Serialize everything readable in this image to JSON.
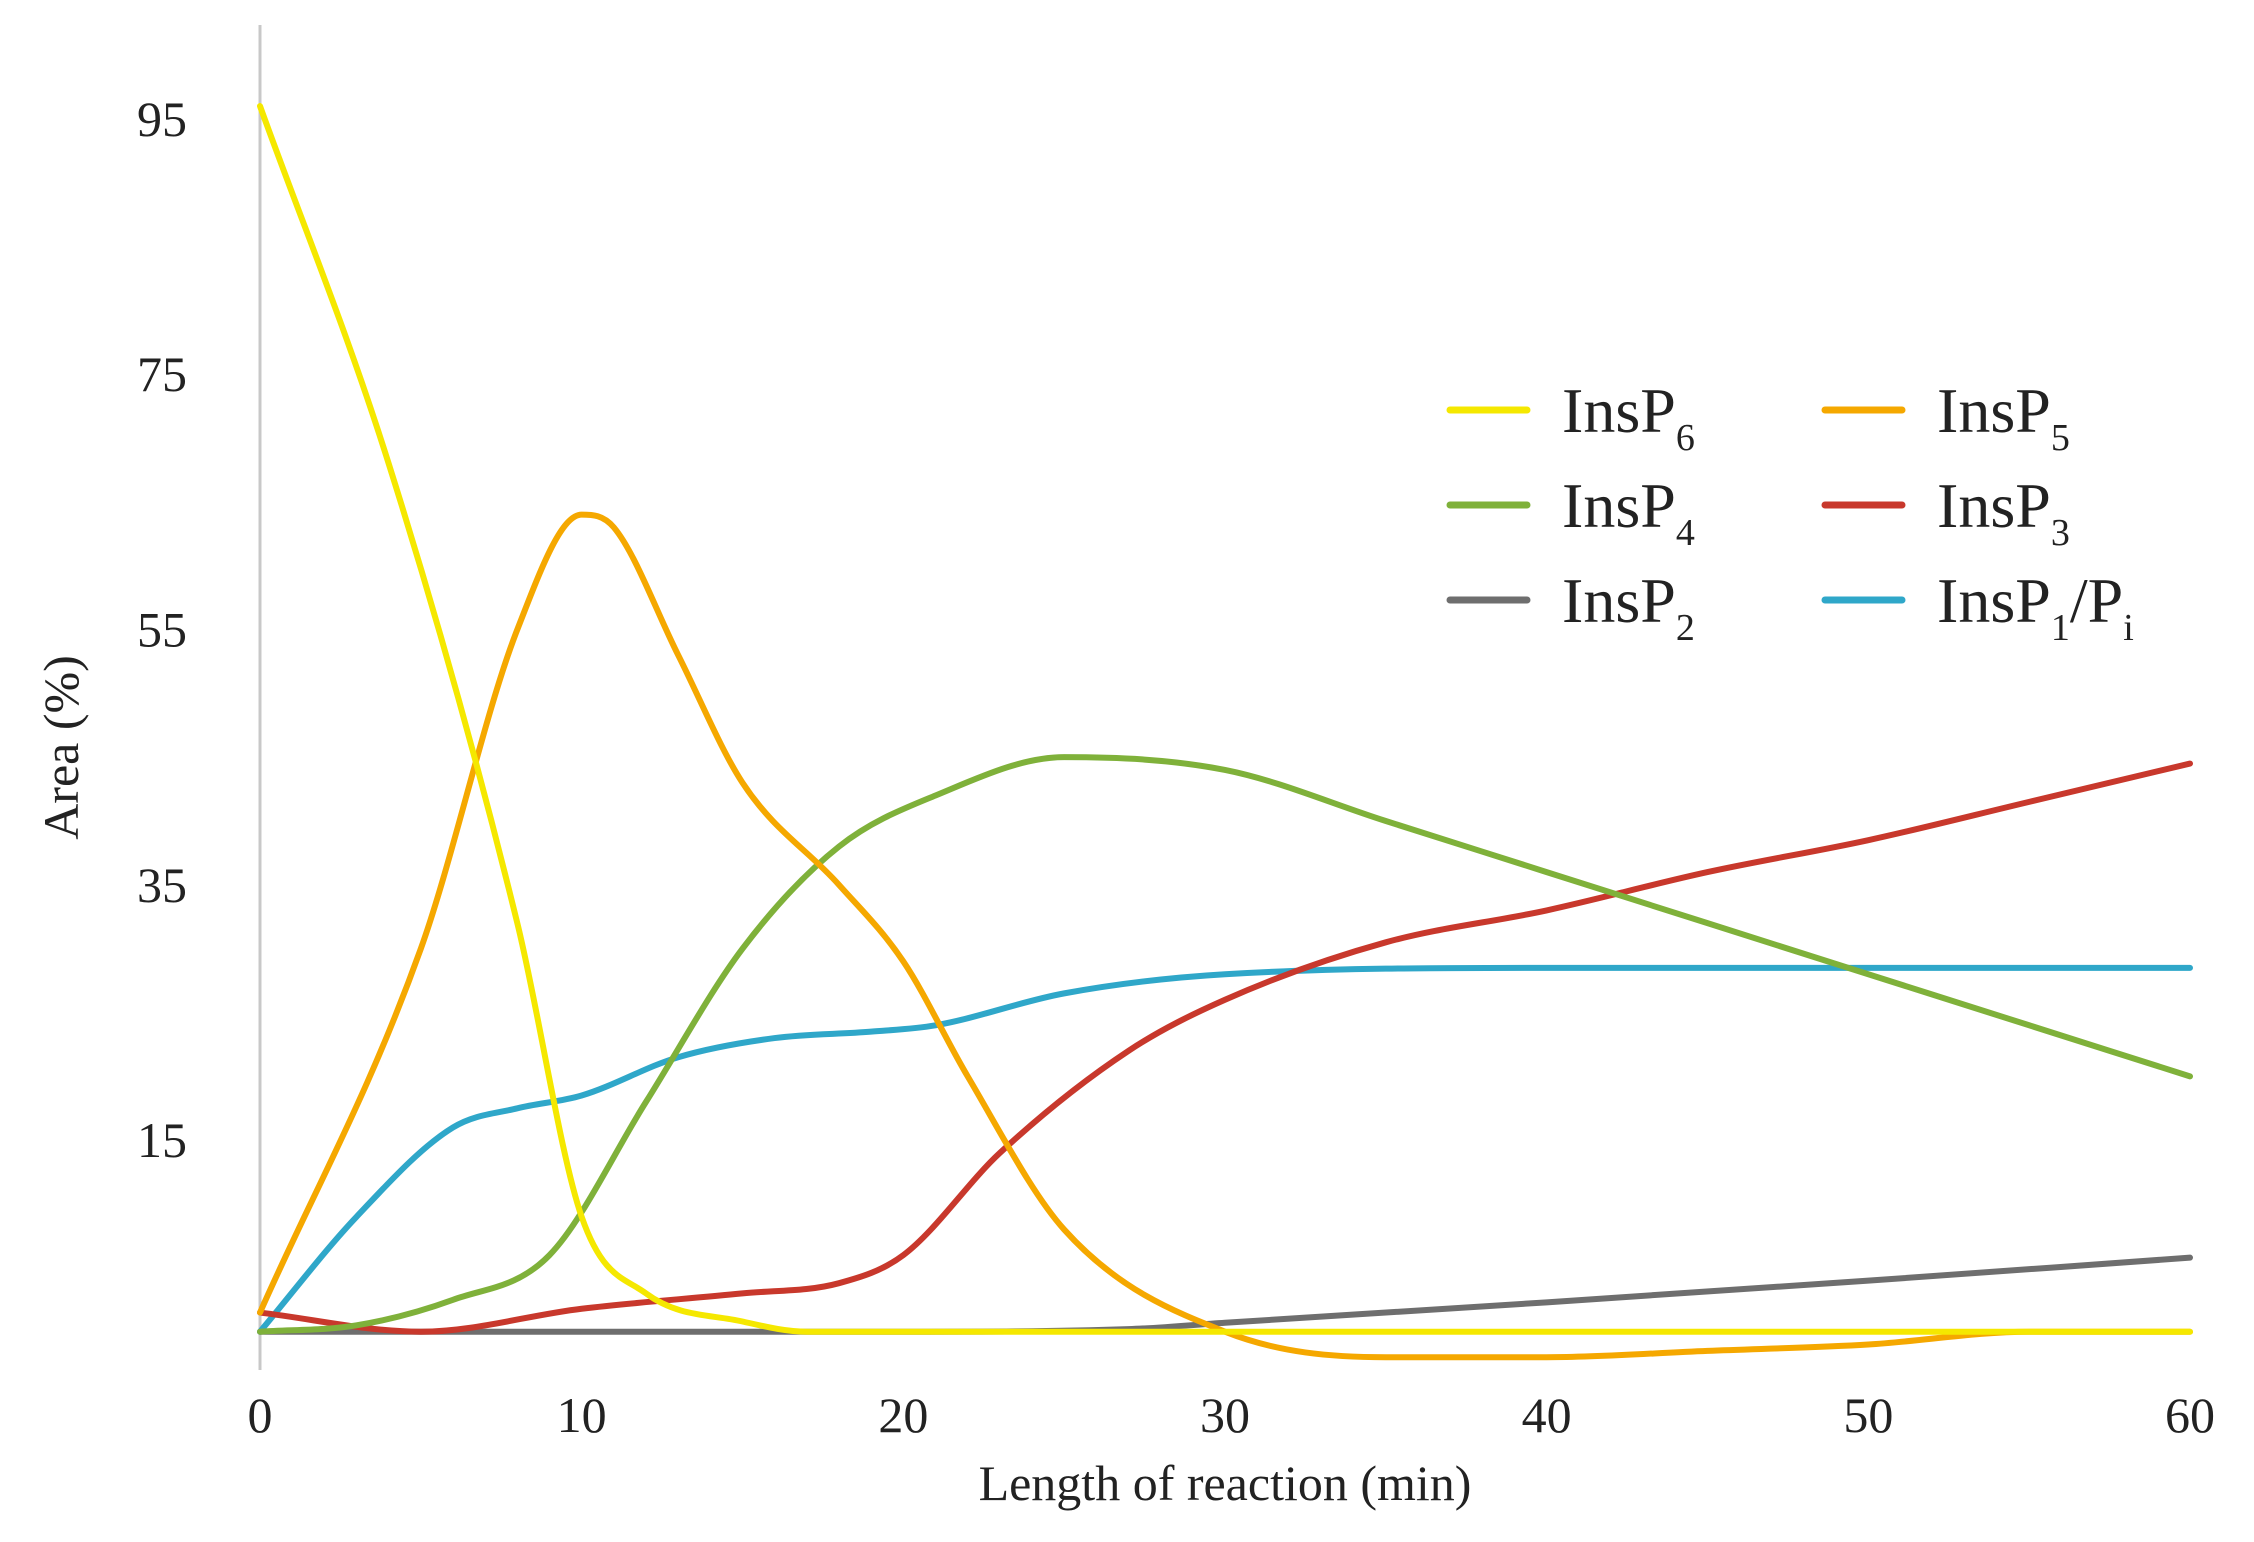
{
  "chart_data": {
    "type": "line",
    "title": "",
    "xlabel": "Length of reaction (min)",
    "ylabel": "Area (%)",
    "xlim": [
      0,
      60
    ],
    "ylim": [
      -3,
      100
    ],
    "x_ticks": [
      "0",
      "10",
      "20",
      "30",
      "40",
      "50",
      "60"
    ],
    "y_ticks": [
      "15",
      "35",
      "55",
      "75",
      "95"
    ],
    "grid": false,
    "legend_position": "right",
    "series": [
      {
        "name": "InsP6",
        "label_main": "InsP",
        "label_sub": "6",
        "color": "#f5e800",
        "x": [
          0,
          4,
          8,
          10,
          12,
          15,
          17,
          20,
          30,
          40,
          50,
          60
        ],
        "y": [
          96,
          68,
          32,
          9,
          3,
          0.8,
          0,
          0,
          0,
          0,
          0,
          0
        ]
      },
      {
        "name": "InsP5",
        "label_main": "InsP",
        "label_sub": "5",
        "color": "#f5a800",
        "x": [
          0,
          5,
          8,
          10,
          11,
          13,
          15,
          18,
          20,
          22,
          25,
          30,
          35,
          40,
          45,
          50,
          55,
          60
        ],
        "y": [
          1.5,
          30,
          55,
          64,
          63,
          53,
          43,
          35,
          29,
          20,
          8,
          0,
          -2,
          -2,
          -1.5,
          -1,
          0,
          0
        ]
      },
      {
        "name": "InsP4",
        "label_main": "InsP",
        "label_sub": "4",
        "color": "#7fb13a",
        "x": [
          0,
          3,
          6,
          9,
          12,
          15,
          18,
          21,
          25,
          30,
          35,
          40,
          45,
          50,
          55,
          60
        ],
        "y": [
          0,
          0.5,
          2.5,
          6,
          18,
          30,
          38,
          42,
          45,
          44,
          40,
          36,
          32,
          28,
          24,
          20
        ]
      },
      {
        "name": "InsP3",
        "label_main": "InsP",
        "label_sub": "3",
        "color": "#c8382c",
        "x": [
          0,
          5,
          10,
          15,
          18,
          20,
          23,
          27,
          30,
          35,
          40,
          45,
          50,
          55,
          60
        ],
        "y": [
          1.5,
          0,
          1.8,
          3,
          3.8,
          6,
          14,
          22,
          26,
          30.5,
          33,
          36,
          38.5,
          41.5,
          44.5
        ]
      },
      {
        "name": "InsP2",
        "label_main": "InsP",
        "label_sub": "2",
        "color": "#6e6e6e",
        "x": [
          0,
          10,
          20,
          27,
          30,
          40,
          50,
          60
        ],
        "y": [
          0,
          0,
          0,
          0.2,
          0.7,
          2.3,
          4,
          5.8
        ]
      },
      {
        "name": "InsP1/Pi",
        "label_main": "InsP",
        "label_sub": "1",
        "label_main2": "/P",
        "label_sub2": "i",
        "color": "#2fa7c9",
        "x": [
          0,
          3,
          6,
          8,
          10,
          13,
          16,
          19,
          21,
          25,
          30,
          40,
          50,
          60
        ],
        "y": [
          0,
          9,
          16,
          17.5,
          18.5,
          21.5,
          23,
          23.5,
          24,
          26.5,
          28,
          28.5,
          28.5,
          28.5
        ]
      }
    ]
  }
}
